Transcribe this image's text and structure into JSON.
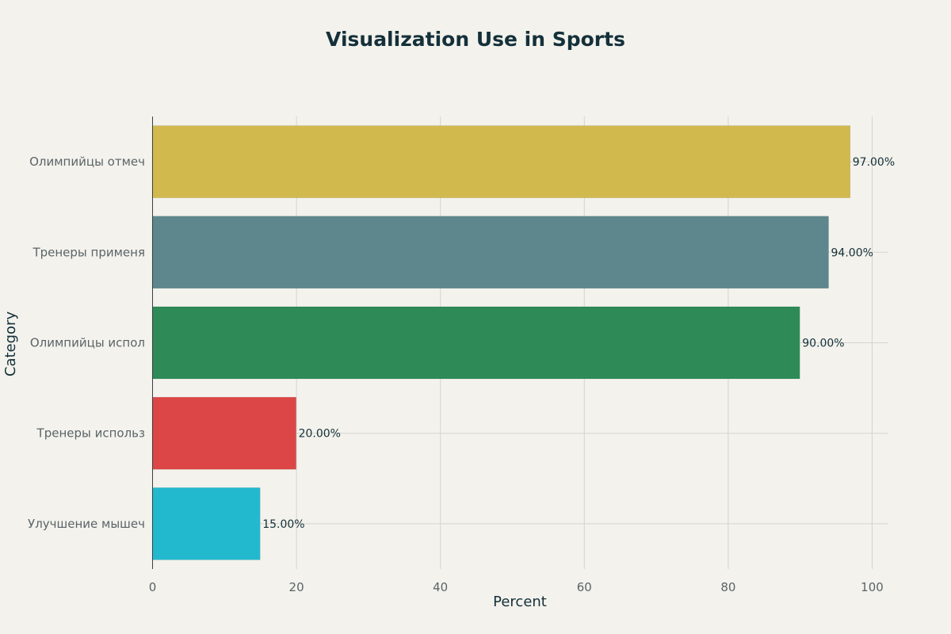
{
  "chart_data": {
    "type": "bar",
    "orientation": "horizontal",
    "title": "Visualization Use in Sports",
    "xlabel": "Percent",
    "ylabel": "Category",
    "xlim": [
      0,
      102
    ],
    "x_ticks": [
      0,
      20,
      40,
      60,
      80,
      100
    ],
    "grid": true,
    "categories": [
      "Олимпийцы отмеч",
      "Тренеры применя",
      "Олимпийцы испол",
      "Тренеры использ",
      "Улучшение мышеч"
    ],
    "values": [
      97,
      94,
      90,
      20,
      15
    ],
    "data_labels": [
      "97.00%",
      "94.00%",
      "90.00%",
      "20.00%",
      "15.00%"
    ],
    "colors": [
      "#d2b94e",
      "#5d878d",
      "#2e8b57",
      "#dc4646",
      "#22b9cf"
    ]
  }
}
